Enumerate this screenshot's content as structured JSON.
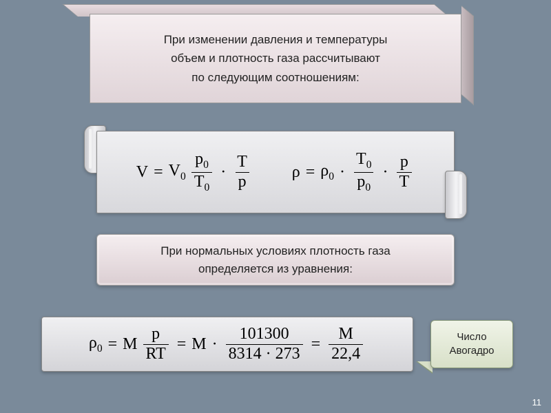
{
  "colors": {
    "page_bg": "#7a8a9a",
    "panel_pink_top": "#f5eef0",
    "panel_pink_bottom": "#dbced2",
    "panel_gray_top": "#f0f0f2",
    "panel_gray_bottom": "#d4d4d8",
    "callout_top": "#f0f4e8",
    "callout_bottom": "#d8e0c8",
    "border": "#999999",
    "text": "#222222"
  },
  "typography": {
    "body_font": "Arial",
    "body_size_pt": 13,
    "formula_font": "Times New Roman",
    "formula_size_pt": 18
  },
  "header": {
    "line1": "При изменении давления и температуры",
    "line2": "объем и плотность газа рассчитывают",
    "line3": "по следующим соотношениям:"
  },
  "formulas_top": {
    "volume": {
      "lhs": "V",
      "rhs_base": "V",
      "rhs_base_sub": "0",
      "frac1_num": "p",
      "frac1_num_sub": "0",
      "frac1_den": "T",
      "frac1_den_sub": "0",
      "frac2_num": "T",
      "frac2_den": "p"
    },
    "density": {
      "lhs": "ρ",
      "rhs_base": "ρ",
      "rhs_base_sub": "0",
      "frac1_num": "T",
      "frac1_num_sub": "0",
      "frac1_den": "p",
      "frac1_den_sub": "0",
      "frac2_num": "p",
      "frac2_den": "T"
    }
  },
  "middle_panel": {
    "line1": "При нормальных условиях плотность газа",
    "line2": "определяется из уравнения:"
  },
  "formula_bottom": {
    "lhs": "ρ",
    "lhs_sub": "0",
    "term1_coef": "M",
    "term1_num": "p",
    "term1_den": "RT",
    "term2_coef": "M",
    "term2_num": "101300",
    "term2_den": "8314 · 273",
    "term3_num": "M",
    "term3_den": "22,4"
  },
  "callout": {
    "line1": "Число",
    "line2": "Авогадро"
  },
  "page_number": "11"
}
